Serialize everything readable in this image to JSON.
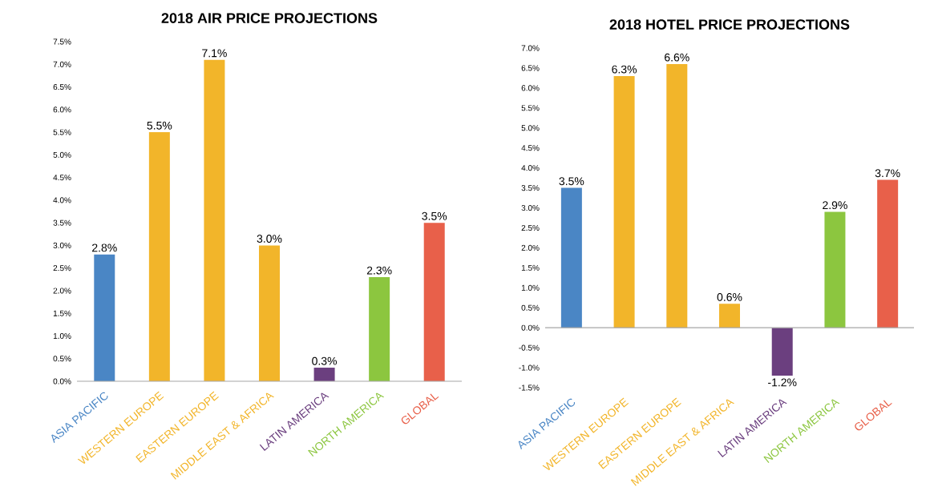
{
  "chart_data": [
    {
      "type": "bar",
      "title": "2018 AIR PRICE PROJECTIONS",
      "categories": [
        "ASIA PACIFIC",
        "WESTERN EUROPE",
        "EASTERN EUROPE",
        "MIDDLE EAST & AFRICA",
        "LATIN AMERICA",
        "NORTH AMERICA",
        "GLOBAL"
      ],
      "values": [
        2.8,
        5.5,
        7.1,
        3.0,
        0.3,
        2.3,
        3.5
      ],
      "colors": [
        "#4a86c5",
        "#f2b52a",
        "#f2b52a",
        "#f2b52a",
        "#6b3f7f",
        "#8cc63f",
        "#e8604a"
      ],
      "value_labels": [
        "2.8%",
        "5.5%",
        "7.1%",
        "3.0%",
        "0.3%",
        "2.3%",
        "3.5%"
      ],
      "ylim": [
        0,
        7.5
      ],
      "yticks": [
        {
          "value": 0,
          "label": "0.0%"
        },
        {
          "value": 0.5,
          "label": "0.5%"
        },
        {
          "value": 1,
          "label": "1.0%"
        },
        {
          "value": 1.5,
          "label": "1.5%"
        },
        {
          "value": 2,
          "label": "2.0%"
        },
        {
          "value": 2.5,
          "label": "2.5%"
        },
        {
          "value": 3,
          "label": "3.0%"
        },
        {
          "value": 3.5,
          "label": "3.5%"
        },
        {
          "value": 4,
          "label": "4.0%"
        },
        {
          "value": 4.5,
          "label": "4.5%"
        },
        {
          "value": 5,
          "label": "5.0%"
        },
        {
          "value": 5.5,
          "label": "5.5%"
        },
        {
          "value": 6,
          "label": "6.0%"
        },
        {
          "value": 6.5,
          "label": "6.5%"
        },
        {
          "value": 7,
          "label": "7.0%"
        },
        {
          "value": 7.5,
          "label": "7.5%"
        }
      ]
    },
    {
      "type": "bar",
      "title": "2018 HOTEL PRICE PROJECTIONS",
      "categories": [
        "ASIA PACIFIC",
        "WESTERN EUROPE",
        "EASTERN EUROPE",
        "MIDDLE EAST & AFRICA",
        "LATIN AMERICA",
        "NORTH AMERICA",
        "GLOBAL"
      ],
      "values": [
        3.5,
        6.3,
        6.6,
        0.6,
        -1.2,
        2.9,
        3.7
      ],
      "colors": [
        "#4a86c5",
        "#f2b52a",
        "#f2b52a",
        "#f2b52a",
        "#6b3f7f",
        "#8cc63f",
        "#e8604a"
      ],
      "value_labels": [
        "3.5%",
        "6.3%",
        "6.6%",
        "0.6%",
        "-1.2%",
        "2.9%",
        "3.7%"
      ],
      "ylim": [
        -1.5,
        7.0
      ],
      "yticks": [
        {
          "value": -1.5,
          "label": "-1.5%"
        },
        {
          "value": -1,
          "label": "-1.0%"
        },
        {
          "value": -0.5,
          "label": "-0.5%"
        },
        {
          "value": 0,
          "label": "0.0%"
        },
        {
          "value": 0.5,
          "label": "0.5%"
        },
        {
          "value": 1,
          "label": "1.0%"
        },
        {
          "value": 1.5,
          "label": "1.5%"
        },
        {
          "value": 2,
          "label": "2.0%"
        },
        {
          "value": 2.5,
          "label": "2.5%"
        },
        {
          "value": 3,
          "label": "3.0%"
        },
        {
          "value": 3.5,
          "label": "3.5%"
        },
        {
          "value": 4,
          "label": "4.0%"
        },
        {
          "value": 4.5,
          "label": "4.5%"
        },
        {
          "value": 5,
          "label": "5.0%"
        },
        {
          "value": 5.5,
          "label": "5.5%"
        },
        {
          "value": 6,
          "label": "6.0%"
        },
        {
          "value": 6.5,
          "label": "6.5%"
        },
        {
          "value": 7,
          "label": "7.0%"
        }
      ]
    }
  ]
}
